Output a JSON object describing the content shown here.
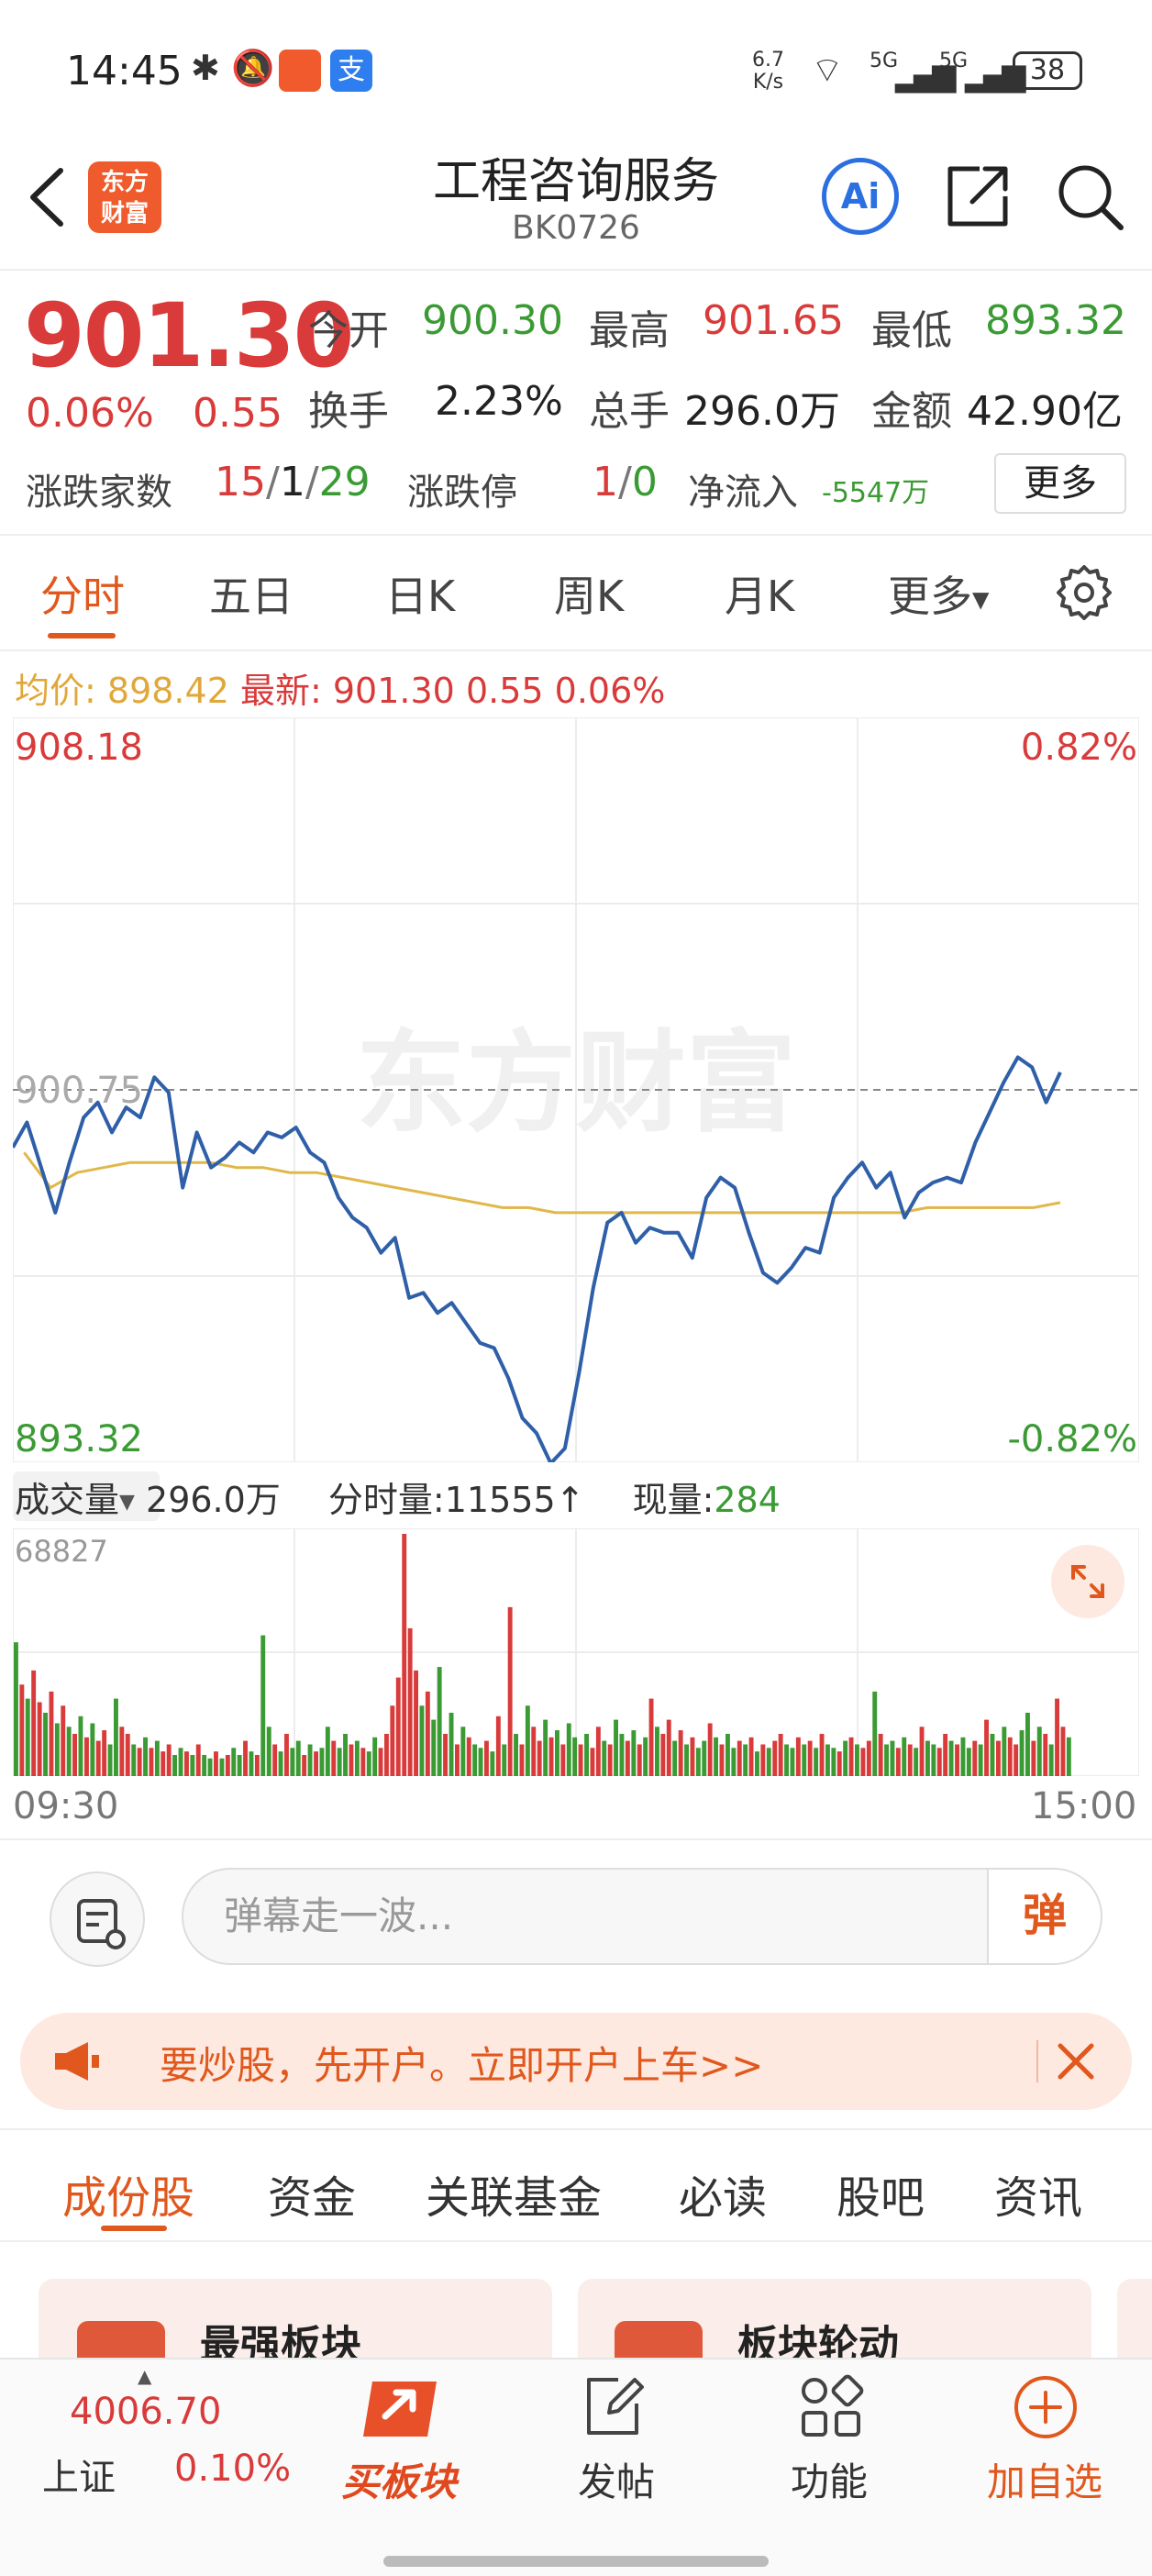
{
  "status_bar": {
    "time": "14:45",
    "net_speed_top": "6.7",
    "net_speed_bottom": "K/s",
    "sig1": "5G",
    "sig2": "5G",
    "battery": "38"
  },
  "header": {
    "logo_line1": "东方",
    "logo_line2": "财富",
    "title": "工程咨询服务",
    "code": "BK0726",
    "ai_label": "Ai"
  },
  "quote": {
    "price": "901.30",
    "change_pct": "0.06%",
    "change_val": "0.55",
    "open_label": "今开",
    "open": "900.30",
    "high_label": "最高",
    "high": "901.65",
    "low_label": "最低",
    "low": "893.32",
    "turnover_label": "换手",
    "turnover": "2.23%",
    "volume_label": "总手",
    "volume": "296.0万",
    "amount_label": "金额",
    "amount": "42.90亿",
    "breadth_label": "涨跌家数",
    "breadth_up": "15",
    "breadth_flat": "1",
    "breadth_down": "29",
    "limit_label": "涨跌停",
    "limit_up": "1",
    "limit_down": "0",
    "netflow_label": "净流入",
    "netflow": "-5547万",
    "more_label": "更多"
  },
  "period_tabs": [
    "分时",
    "五日",
    "日K",
    "周K",
    "月K",
    "更多"
  ],
  "info_line": {
    "avg_label": "均价:",
    "avg": "898.42",
    "last_label": "最新:",
    "last": "901.30",
    "change": "0.55",
    "pct": "0.06%"
  },
  "chart_data": {
    "type": "line",
    "y_top": "908.18",
    "y_bottom": "893.32",
    "y_ref": "900.75",
    "pct_top": "0.82%",
    "pct_bottom": "-0.82%",
    "ylim": [
      893.32,
      908.18
    ],
    "watermark": "东方财富",
    "x_start": "09:30",
    "x_end": "15:00",
    "series": [
      {
        "values": [
          899.6,
          900.1,
          899.2,
          898.3,
          899.3,
          900.2,
          900.5,
          899.9,
          900.4,
          900.2,
          901.0,
          900.7,
          898.8,
          899.9,
          899.2,
          899.4,
          899.7,
          899.5,
          899.9,
          899.8,
          900.0,
          899.5,
          899.3,
          898.6,
          898.2,
          898.0,
          897.5,
          897.8,
          896.6,
          896.7,
          896.3,
          896.5,
          896.1,
          895.7,
          895.6,
          895.0,
          894.2,
          893.9,
          893.3,
          893.6,
          895.1,
          896.8,
          898.1,
          898.3,
          897.7,
          898.0,
          897.9,
          897.9,
          897.4,
          898.6,
          899.0,
          898.8,
          897.9,
          897.1,
          896.9,
          897.2,
          897.6,
          897.5,
          898.6,
          899.0,
          899.3,
          898.8,
          899.1,
          898.2,
          898.7,
          898.9,
          899.0,
          898.9,
          899.7,
          900.3,
          900.9,
          901.4,
          901.2,
          900.5,
          901.1
        ],
        "color": "#2f5fa8"
      },
      {
        "values": [
          899.5,
          898.8,
          899.1,
          899.2,
          899.3,
          899.3,
          899.3,
          899.3,
          899.2,
          899.2,
          899.1,
          899.1,
          899.0,
          898.9,
          898.8,
          898.7,
          898.6,
          898.5,
          898.4,
          898.4,
          898.3,
          898.3,
          898.3,
          898.3,
          898.3,
          898.3,
          898.3,
          898.3,
          898.3,
          898.3,
          898.3,
          898.3,
          898.3,
          898.3,
          898.4,
          898.4,
          898.4,
          898.4,
          898.4,
          898.5
        ],
        "color": "#e0b84a"
      }
    ],
    "volume": {
      "top_label": "68827",
      "label": "成交量",
      "total": "296.0万",
      "tick_label": "分时量:",
      "tick_value": "11555",
      "tick_arrow": "↑",
      "now_label": "现量:",
      "now_value": "284",
      "max": 68827,
      "values": [
        38000,
        26000,
        22000,
        30000,
        21000,
        18000,
        24000,
        15000,
        20000,
        14000,
        12000,
        17000,
        11000,
        15000,
        10000,
        13000,
        9000,
        22000,
        14000,
        12000,
        9000,
        8000,
        11000,
        8000,
        10000,
        7000,
        9000,
        6000,
        8000,
        7000,
        6000,
        9000,
        6000,
        5000,
        7000,
        5000,
        6000,
        8000,
        6000,
        10000,
        7000,
        6000,
        40000,
        14000,
        9000,
        7000,
        12000,
        8000,
        10000,
        6000,
        9000,
        7000,
        8000,
        14000,
        10000,
        8000,
        12000,
        9000,
        10000,
        8000,
        7000,
        11000,
        8000,
        12000,
        20000,
        28000,
        68827,
        42000,
        30000,
        20000,
        24000,
        16000,
        31000,
        12000,
        18000,
        9000,
        14000,
        11000,
        9000,
        8000,
        10000,
        7000,
        17000,
        9000,
        48000,
        12000,
        9000,
        20000,
        14000,
        10000,
        16000,
        11000,
        13000,
        9000,
        15000,
        11000,
        9000,
        12000,
        8000,
        14000,
        10000,
        9000,
        16000,
        12000,
        10000,
        13000,
        9000,
        11000,
        22000,
        14000,
        12000,
        16000,
        10000,
        13000,
        9000,
        11000,
        8000,
        10000,
        15000,
        11000,
        9000,
        12000,
        8000,
        10000,
        9000,
        11000,
        7000,
        9000,
        8000,
        10000,
        12000,
        9000,
        8000,
        11000,
        9000,
        10000,
        8000,
        12000,
        9000,
        8000,
        7000,
        10000,
        11000,
        9000,
        8000,
        10000,
        24000,
        12000,
        9000,
        10000,
        8000,
        11000,
        9000,
        8000,
        14000,
        10000,
        9000,
        8000,
        12000,
        10000,
        9000,
        11000,
        8000,
        10000,
        9000,
        16000,
        12000,
        10000,
        14000,
        11000,
        9000,
        13000,
        18000,
        10000,
        14000,
        12000,
        9000,
        22000,
        14000,
        11000
      ],
      "colors": [
        "g",
        "r",
        "g",
        "r",
        "r",
        "g",
        "r",
        "g",
        "r",
        "g",
        "r",
        "g",
        "r",
        "g",
        "r",
        "r",
        "g",
        "g",
        "r",
        "r",
        "g",
        "r",
        "g",
        "r",
        "g",
        "r",
        "r",
        "g",
        "g",
        "r",
        "g",
        "r",
        "g",
        "g",
        "r",
        "g",
        "r",
        "g",
        "g",
        "r",
        "g",
        "r",
        "g",
        "g",
        "r",
        "g",
        "r",
        "g",
        "g",
        "r",
        "g",
        "r",
        "g",
        "g",
        "r",
        "g",
        "g",
        "r",
        "g",
        "r",
        "g",
        "g",
        "r",
        "r",
        "r",
        "r",
        "r",
        "r",
        "r",
        "g",
        "r",
        "g",
        "g",
        "r",
        "g",
        "r",
        "g",
        "r",
        "g",
        "g",
        "r",
        "g",
        "r",
        "g",
        "r",
        "g",
        "r",
        "g",
        "r",
        "r",
        "g",
        "r",
        "g",
        "r",
        "g",
        "g",
        "r",
        "g",
        "r",
        "r",
        "g",
        "r",
        "g",
        "g",
        "r",
        "g",
        "r",
        "g",
        "r",
        "g",
        "r",
        "r",
        "g",
        "r",
        "g",
        "r",
        "g",
        "g",
        "r",
        "g",
        "r",
        "g",
        "g",
        "r",
        "g",
        "r",
        "g",
        "r",
        "g",
        "r",
        "r",
        "g",
        "g",
        "r",
        "g",
        "r",
        "g",
        "r",
        "g",
        "g",
        "r",
        "g",
        "r",
        "g",
        "r",
        "r",
        "g",
        "r",
        "g",
        "g",
        "r",
        "g",
        "r",
        "g",
        "r",
        "g",
        "g",
        "r",
        "r",
        "g",
        "r",
        "g",
        "g",
        "r",
        "g",
        "r",
        "g",
        "r",
        "g",
        "r",
        "r",
        "g",
        "g",
        "r",
        "g",
        "r",
        "g",
        "r",
        "r",
        "g",
        "r",
        "g",
        "g"
      ]
    }
  },
  "danmaku": {
    "placeholder": "弹幕走一波...",
    "send_label": "弹"
  },
  "promo": {
    "text": "要炒股，先开户。立即开户上车>>"
  },
  "section_tabs": [
    "成份股",
    "资金",
    "关联基金",
    "必读",
    "股吧",
    "资讯"
  ],
  "cards": [
    {
      "title": "最强板块"
    },
    {
      "title": "板块轮动"
    }
  ],
  "bottom_nav": {
    "index_value": "4006.70",
    "index_name": "上证",
    "index_pct": "0.10%",
    "buy_label": "买板块",
    "post_label": "发帖",
    "func_label": "功能",
    "add_label": "加自选"
  },
  "colors": {
    "up": "#d93a3a",
    "down": "#3a9a33",
    "accent": "#e0581d",
    "price_line": "#2f5fa8",
    "avg_line": "#e0b84a"
  }
}
